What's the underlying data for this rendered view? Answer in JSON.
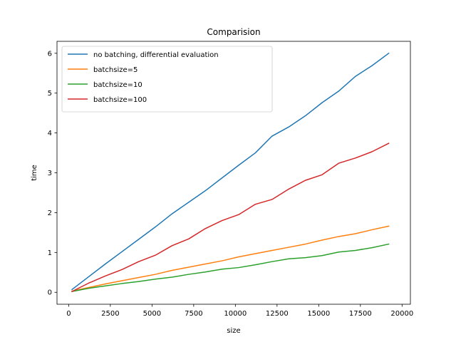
{
  "chart_data": {
    "type": "line",
    "title": "Comparision",
    "xlabel": "size",
    "ylabel": "time",
    "xlim": [
      -700,
      20500
    ],
    "ylim": [
      -0.3,
      6.3
    ],
    "xticks": [
      0,
      2500,
      5000,
      7500,
      10000,
      12500,
      15000,
      17500,
      20000
    ],
    "xtick_labels": [
      "0",
      "2500",
      "5000",
      "7500",
      "10000",
      "12500",
      "15000",
      "17500",
      "20000"
    ],
    "yticks": [
      0,
      1,
      2,
      3,
      4,
      5,
      6
    ],
    "ytick_labels": [
      "0",
      "1",
      "2",
      "3",
      "4",
      "5",
      "6"
    ],
    "grid": false,
    "legend_position": "top-left",
    "x": [
      200,
      1200,
      2200,
      3200,
      4200,
      5200,
      6200,
      7200,
      8200,
      9200,
      10200,
      11200,
      12200,
      13200,
      14200,
      15200,
      16200,
      17200,
      18200,
      19200
    ],
    "series": [
      {
        "name": "no batching, differential evaluation",
        "color": "#1f77b4",
        "values": [
          0.07,
          0.39,
          0.71,
          1.02,
          1.33,
          1.64,
          1.97,
          2.26,
          2.55,
          2.87,
          3.19,
          3.5,
          3.92,
          4.15,
          4.43,
          4.76,
          5.05,
          5.42,
          5.69,
          6.0
        ]
      },
      {
        "name": "batchsize=5",
        "color": "#ff7f0e",
        "values": [
          0.03,
          0.12,
          0.21,
          0.29,
          0.37,
          0.45,
          0.55,
          0.63,
          0.71,
          0.79,
          0.89,
          0.97,
          1.05,
          1.13,
          1.21,
          1.31,
          1.4,
          1.47,
          1.57,
          1.66
        ]
      },
      {
        "name": "batchsize=10",
        "color": "#2ca02c",
        "values": [
          0.02,
          0.1,
          0.16,
          0.22,
          0.27,
          0.33,
          0.38,
          0.45,
          0.51,
          0.58,
          0.62,
          0.69,
          0.77,
          0.84,
          0.87,
          0.92,
          1.01,
          1.05,
          1.12,
          1.21
        ]
      },
      {
        "name": "batchsize=100",
        "color": "#d62728",
        "values": [
          0.02,
          0.23,
          0.41,
          0.57,
          0.77,
          0.93,
          1.17,
          1.34,
          1.6,
          1.8,
          1.95,
          2.21,
          2.33,
          2.59,
          2.81,
          2.95,
          3.24,
          3.37,
          3.53,
          3.74
        ]
      }
    ]
  }
}
